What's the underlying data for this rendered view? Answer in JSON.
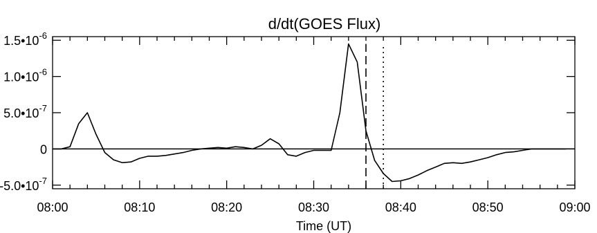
{
  "chart_data": {
    "type": "line",
    "title": "d/dt(GOES Flux)",
    "xlabel": "Time (UT)",
    "ylabel": "",
    "x_unit": "minutes after 08:00",
    "xlim": [
      0,
      60
    ],
    "ylim": [
      -5.5e-07,
      1.55e-06
    ],
    "x_ticks": [
      {
        "value": 0,
        "label": "08:00"
      },
      {
        "value": 10,
        "label": "08:10"
      },
      {
        "value": 20,
        "label": "08:20"
      },
      {
        "value": 30,
        "label": "08:30"
      },
      {
        "value": 40,
        "label": "08:40"
      },
      {
        "value": 50,
        "label": "08:50"
      },
      {
        "value": 60,
        "label": "09:00"
      }
    ],
    "y_ticks": [
      {
        "value": -5e-07,
        "mant": "-5.0•10",
        "exp": "-7"
      },
      {
        "value": 0,
        "mant": "0",
        "exp": ""
      },
      {
        "value": 5e-07,
        "mant": "5.0•10",
        "exp": "-7"
      },
      {
        "value": 1e-06,
        "mant": "1.0•10",
        "exp": "-6"
      },
      {
        "value": 1.5e-06,
        "mant": "1.5•10",
        "exp": "-6"
      }
    ],
    "series": [
      {
        "x": [
          0,
          1,
          2,
          3,
          4,
          5,
          6,
          7,
          8,
          9,
          10,
          11,
          12,
          13,
          14,
          15,
          16,
          17,
          18,
          19,
          20,
          21,
          22,
          23,
          24,
          25,
          26,
          27,
          28,
          29,
          30,
          31,
          32,
          33,
          34,
          35,
          36,
          37,
          38,
          39,
          40,
          41,
          42,
          43,
          44,
          45,
          46,
          47,
          48,
          49,
          50,
          51,
          52,
          53,
          54,
          55,
          56,
          57,
          58,
          59
        ],
        "y": [
          0,
          0,
          3e-08,
          3.5e-07,
          5e-07,
          2e-07,
          -5e-08,
          -1.5e-07,
          -1.9e-07,
          -1.8e-07,
          -1.3e-07,
          -1e-07,
          -1e-07,
          -9e-08,
          -7e-08,
          -5e-08,
          -2e-08,
          0,
          1e-08,
          2e-08,
          1e-08,
          3e-08,
          2e-08,
          0,
          5e-08,
          1.4e-07,
          7e-08,
          -8e-08,
          -1e-07,
          -5e-08,
          -2e-08,
          -2e-08,
          -2e-08,
          5e-07,
          1.45e-06,
          1.2e-06,
          2.5e-07,
          -1.6e-07,
          -3.4e-07,
          -4.5e-07,
          -4.4e-07,
          -4.1e-07,
          -3.6e-07,
          -3e-07,
          -2.5e-07,
          -2e-07,
          -1.9e-07,
          -2e-07,
          -1.8e-07,
          -1.5e-07,
          -1.2e-07,
          -8e-08,
          -5e-08,
          -4e-08,
          -2e-08,
          0,
          0,
          0,
          0,
          0
        ]
      }
    ],
    "vertical_markers": [
      {
        "x": 36,
        "style": "dashed"
      },
      {
        "x": 38,
        "style": "dotted"
      }
    ],
    "zero_line": true,
    "grid": false,
    "legend": "none"
  }
}
